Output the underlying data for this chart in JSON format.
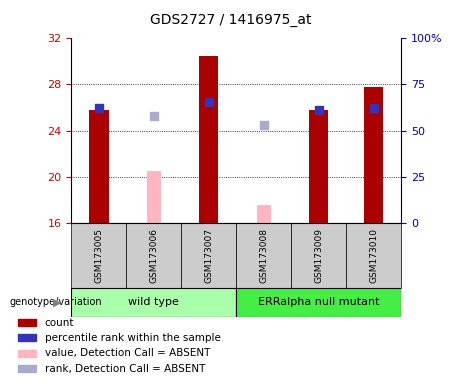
{
  "title": "GDS2727 / 1416975_at",
  "samples": [
    "GSM173005",
    "GSM173006",
    "GSM173007",
    "GSM173008",
    "GSM173009",
    "GSM173010"
  ],
  "count_values": [
    25.8,
    null,
    30.5,
    null,
    25.8,
    27.8
  ],
  "rank_values": [
    26.0,
    null,
    26.5,
    null,
    25.8,
    26.0
  ],
  "absent_value_values": [
    null,
    20.5,
    null,
    17.5,
    null,
    null
  ],
  "absent_rank_values": [
    null,
    25.3,
    null,
    24.5,
    null,
    null
  ],
  "ylim_left": [
    16,
    32
  ],
  "yticks_left": [
    16,
    20,
    24,
    28,
    32
  ],
  "ylim_right": [
    0,
    100
  ],
  "yticks_right": [
    0,
    25,
    50,
    75,
    100
  ],
  "bar_color": "#AA0000",
  "absent_bar_color": "#FFB6C1",
  "rank_dot_color": "#3333BB",
  "absent_rank_dot_color": "#AAAACC",
  "bar_width": 0.35,
  "absent_bar_width": 0.25,
  "dot_size": 30,
  "left_axis_color": "#CC0000",
  "right_axis_color": "#0000BB",
  "grid_color": "black",
  "bg_plot": "#FFFFFF",
  "bg_xlabel": "#CCCCCC",
  "bg_group_wt": "#AAFFAA",
  "bg_group_err": "#44EE44",
  "legend_items": [
    "count",
    "percentile rank within the sample",
    "value, Detection Call = ABSENT",
    "rank, Detection Call = ABSENT"
  ],
  "legend_colors": [
    "#AA0000",
    "#3333BB",
    "#FFB6C1",
    "#AAAACC"
  ],
  "wt_label": "wild type",
  "err_label": "ERRalpha null mutant",
  "genotype_label": "genotype/variation"
}
